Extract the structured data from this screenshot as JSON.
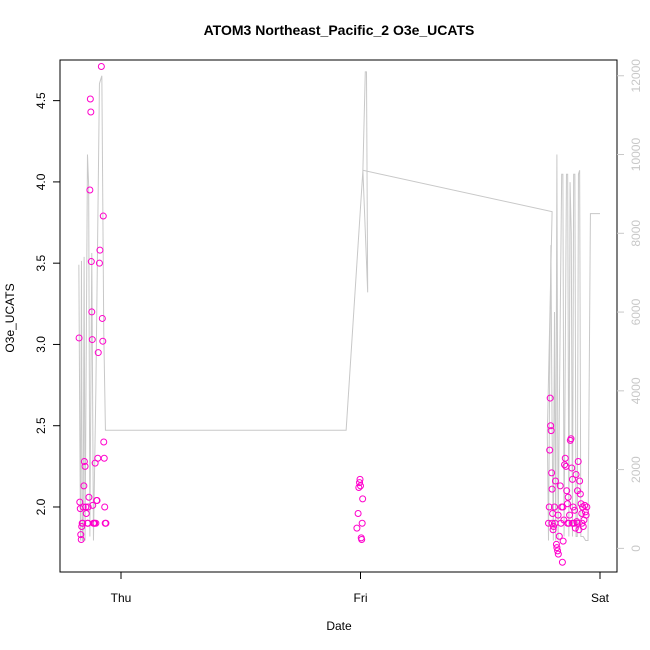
{
  "chart_data": {
    "type": "scatter",
    "title": "ATOM3 Northeast_Pacific_2 O3e_UCATS",
    "xlabel": "Date",
    "ylabel": "O3e_UCATS",
    "x_ticks": [
      "Thu",
      "Fri",
      "Sat"
    ],
    "x_range_days": [
      -0.18,
      2.0
    ],
    "y_left_ticks": [
      2.0,
      2.5,
      3.0,
      3.5,
      4.0,
      4.5
    ],
    "y_left_range": [
      1.6,
      4.75
    ],
    "y_right_ticks": [
      0,
      2000,
      4000,
      6000,
      8000,
      10000,
      12000
    ],
    "y_right_range": [
      -600,
      12400
    ],
    "series": [
      {
        "marker": "circle",
        "color": "#ff00cc",
        "axis": "left",
        "points": [
          [
            -0.175,
            3.04
          ],
          [
            -0.172,
            2.03
          ],
          [
            -0.17,
            1.99
          ],
          [
            -0.168,
            1.83
          ],
          [
            -0.166,
            1.8
          ],
          [
            -0.164,
            1.88
          ],
          [
            -0.162,
            1.9
          ],
          [
            -0.158,
            2.0
          ],
          [
            -0.155,
            2.13
          ],
          [
            -0.153,
            2.28
          ],
          [
            -0.15,
            2.25
          ],
          [
            -0.147,
            2.0
          ],
          [
            -0.145,
            1.96
          ],
          [
            -0.14,
            1.9
          ],
          [
            -0.137,
            2.0
          ],
          [
            -0.134,
            2.06
          ],
          [
            -0.13,
            3.95
          ],
          [
            -0.128,
            4.51
          ],
          [
            -0.126,
            4.43
          ],
          [
            -0.124,
            3.51
          ],
          [
            -0.122,
            3.2
          ],
          [
            -0.12,
            3.03
          ],
          [
            -0.118,
            2.01
          ],
          [
            -0.115,
            1.9
          ],
          [
            -0.112,
            1.9
          ],
          [
            -0.108,
            2.27
          ],
          [
            -0.105,
            1.9
          ],
          [
            -0.102,
            2.04
          ],
          [
            -0.1,
            2.04
          ],
          [
            -0.097,
            2.3
          ],
          [
            -0.095,
            2.95
          ],
          [
            -0.09,
            3.5
          ],
          [
            -0.088,
            3.58
          ],
          [
            -0.082,
            4.71
          ],
          [
            -0.078,
            3.16
          ],
          [
            -0.076,
            3.02
          ],
          [
            -0.074,
            3.79
          ],
          [
            -0.072,
            2.4
          ],
          [
            -0.07,
            2.3
          ],
          [
            -0.068,
            2.0
          ],
          [
            -0.066,
            1.9
          ],
          [
            -0.063,
            1.9
          ],
          [
            -0.16,
            1.9
          ],
          [
            -0.138,
            1.9
          ],
          [
            -0.11,
            1.9
          ],
          [
            0.985,
            1.87
          ],
          [
            0.99,
            1.96
          ],
          [
            0.993,
            2.12
          ],
          [
            0.996,
            2.15
          ],
          [
            0.998,
            2.17
          ],
          [
            1.0,
            2.13
          ],
          [
            1.003,
            1.81
          ],
          [
            1.005,
            1.8
          ],
          [
            1.007,
            1.9
          ],
          [
            1.009,
            2.05
          ],
          [
            1.785,
            1.9
          ],
          [
            1.788,
            2.0
          ],
          [
            1.79,
            2.35
          ],
          [
            1.792,
            2.67
          ],
          [
            1.794,
            2.5
          ],
          [
            1.796,
            2.47
          ],
          [
            1.798,
            2.21
          ],
          [
            1.8,
            2.11
          ],
          [
            1.802,
            1.96
          ],
          [
            1.804,
            1.86
          ],
          [
            1.806,
            1.88
          ],
          [
            1.81,
            2.0
          ],
          [
            1.814,
            2.16
          ],
          [
            1.818,
            1.77
          ],
          [
            1.82,
            1.75
          ],
          [
            1.823,
            1.73
          ],
          [
            1.826,
            1.71
          ],
          [
            1.83,
            1.82
          ],
          [
            1.834,
            2.13
          ],
          [
            1.837,
            1.9
          ],
          [
            1.84,
            2.0
          ],
          [
            1.843,
            1.66
          ],
          [
            1.846,
            1.79
          ],
          [
            1.849,
            1.92
          ],
          [
            1.852,
            2.26
          ],
          [
            1.855,
            2.3
          ],
          [
            1.858,
            2.25
          ],
          [
            1.861,
            2.1
          ],
          [
            1.864,
            2.02
          ],
          [
            1.867,
            2.06
          ],
          [
            1.87,
            1.9
          ],
          [
            1.873,
            1.95
          ],
          [
            1.876,
            2.41
          ],
          [
            1.879,
            2.42
          ],
          [
            1.882,
            2.24
          ],
          [
            1.885,
            2.17
          ],
          [
            1.888,
            2.0
          ],
          [
            1.891,
            1.9
          ],
          [
            1.894,
            1.98
          ],
          [
            1.897,
            1.87
          ],
          [
            1.9,
            2.2
          ],
          [
            1.903,
            1.91
          ],
          [
            1.906,
            2.1
          ],
          [
            1.909,
            2.28
          ],
          [
            1.912,
            1.86
          ],
          [
            1.915,
            2.16
          ],
          [
            1.918,
            2.08
          ],
          [
            1.921,
            2.02
          ],
          [
            1.924,
            1.96
          ],
          [
            1.927,
            2.0
          ],
          [
            1.93,
            1.88
          ],
          [
            1.933,
            1.92
          ],
          [
            1.936,
            2.01
          ],
          [
            1.939,
            1.97
          ],
          [
            1.942,
            1.95
          ],
          [
            1.945,
            2.0
          ],
          [
            1.8,
            1.9
          ],
          [
            1.812,
            1.9
          ],
          [
            1.825,
            1.95
          ],
          [
            1.845,
            2.0
          ],
          [
            1.865,
            1.9
          ],
          [
            1.885,
            1.9
          ],
          [
            1.905,
            1.9
          ],
          [
            1.925,
            1.9
          ]
        ]
      },
      {
        "marker": "line",
        "color": "#c8c8c8",
        "axis": "right",
        "points": [
          [
            -0.176,
            7200
          ],
          [
            -0.172,
            3000
          ],
          [
            -0.169,
            200
          ],
          [
            -0.165,
            7300
          ],
          [
            -0.162,
            200
          ],
          [
            -0.158,
            200
          ],
          [
            -0.154,
            7400
          ],
          [
            -0.15,
            200
          ],
          [
            -0.14,
            10000
          ],
          [
            -0.135,
            9200
          ],
          [
            -0.13,
            300
          ],
          [
            -0.122,
            7500
          ],
          [
            -0.115,
            200
          ],
          [
            -0.105,
            4000
          ],
          [
            -0.09,
            11800
          ],
          [
            -0.08,
            12000
          ],
          [
            -0.072,
            5500
          ],
          [
            -0.065,
            3000
          ],
          [
            0.94,
            3000
          ],
          [
            1.01,
            9600
          ],
          [
            1.02,
            12100
          ],
          [
            1.025,
            12100
          ],
          [
            1.03,
            6500
          ],
          [
            1.01,
            9600
          ],
          [
            1.8,
            8550
          ],
          [
            1.78,
            2900
          ],
          [
            1.785,
            200
          ],
          [
            1.79,
            4500
          ],
          [
            1.795,
            7700
          ],
          [
            1.8,
            3000
          ],
          [
            1.805,
            200
          ],
          [
            1.81,
            6000
          ],
          [
            1.815,
            200
          ],
          [
            1.82,
            10000
          ],
          [
            1.825,
            200
          ],
          [
            1.835,
            6500
          ],
          [
            1.84,
            9500
          ],
          [
            1.845,
            9500
          ],
          [
            1.85,
            300
          ],
          [
            1.86,
            9500
          ],
          [
            1.865,
            9500
          ],
          [
            1.87,
            300
          ],
          [
            1.875,
            9300
          ],
          [
            1.88,
            8000
          ],
          [
            1.885,
            300
          ],
          [
            1.89,
            9500
          ],
          [
            1.895,
            9500
          ],
          [
            1.9,
            300
          ],
          [
            1.905,
            300
          ],
          [
            1.91,
            9500
          ],
          [
            1.915,
            9600
          ],
          [
            1.92,
            300
          ],
          [
            1.93,
            300
          ],
          [
            1.94,
            200
          ],
          [
            1.95,
            200
          ],
          [
            1.96,
            8500
          ],
          [
            2.0,
            8500
          ]
        ]
      }
    ]
  }
}
